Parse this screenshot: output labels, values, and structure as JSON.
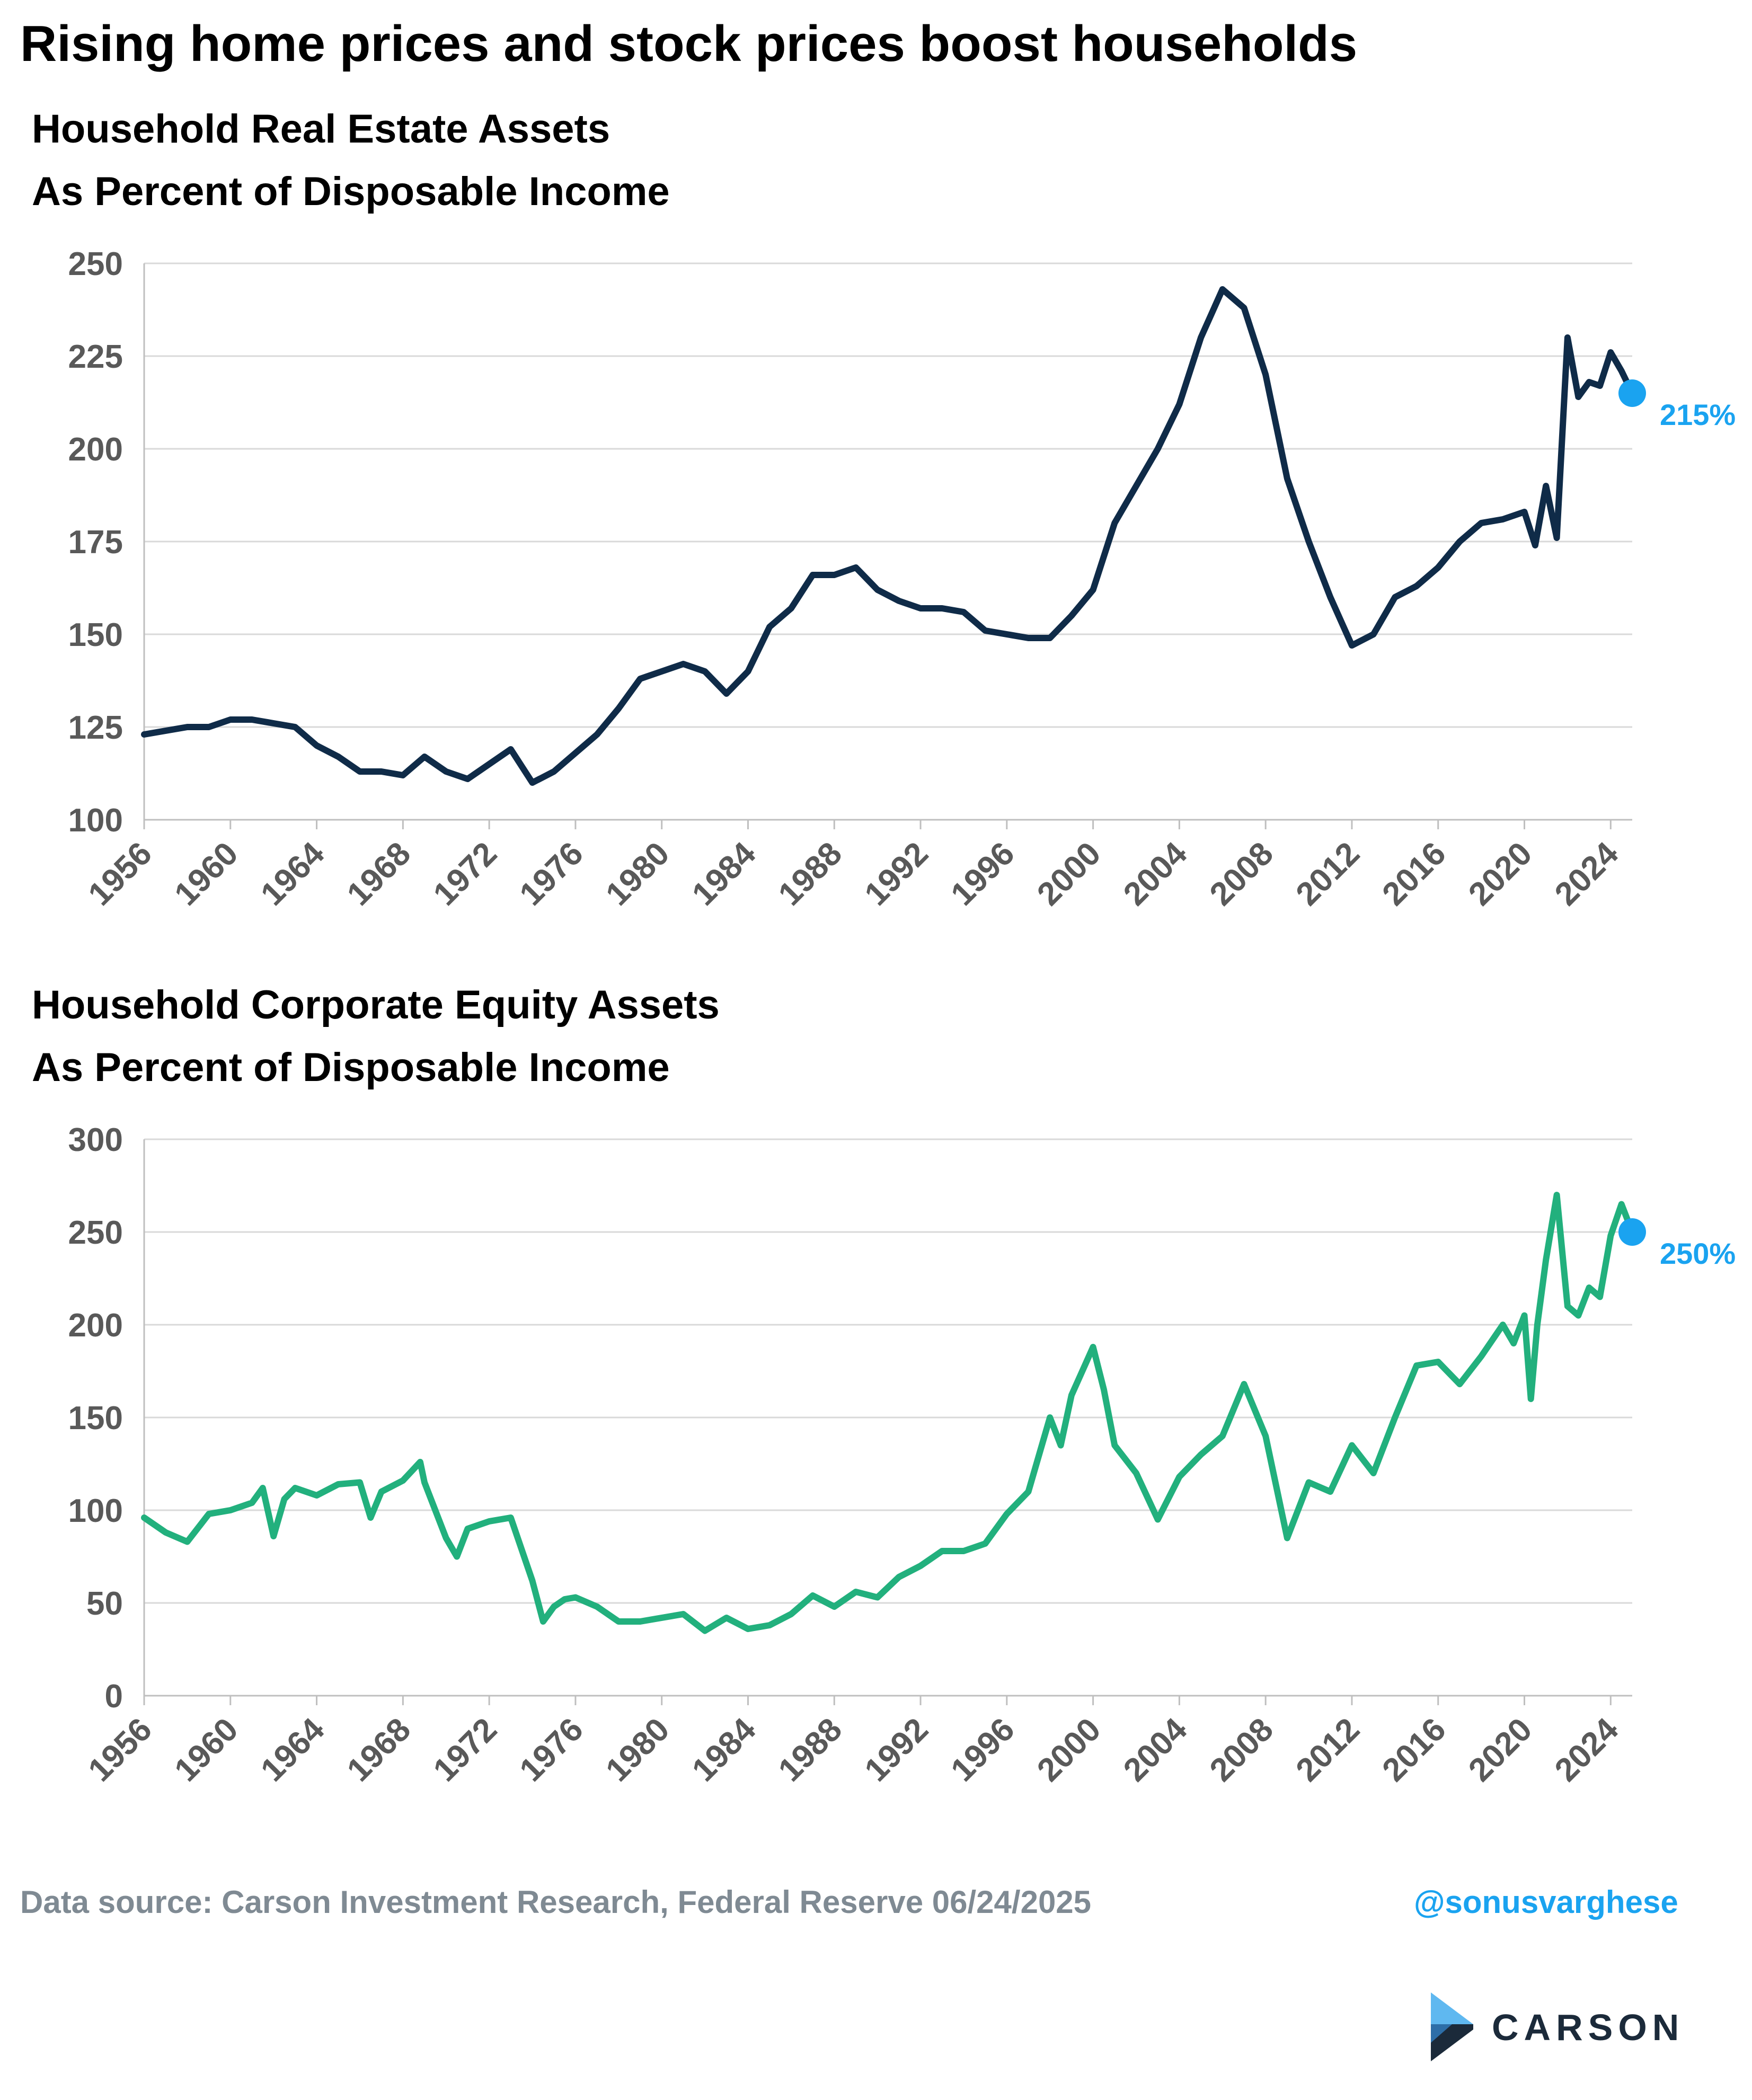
{
  "title": "Rising home prices and stock prices boost households",
  "footer": {
    "source": "Data source: Carson Investment Research, Federal Reserve  06/24/2025",
    "handle": "@sonusvarghese",
    "logo_text": "CARSON"
  },
  "colors": {
    "navy": "#0f2b48",
    "green": "#22b07d",
    "accent": "#1aa3f0",
    "grid": "#d9d9d9",
    "axis_text": "#595959"
  },
  "chart_data": [
    {
      "type": "line",
      "title": "Household Real Estate Assets",
      "subtitle": "As Percent of Disposable Income",
      "ylim": [
        100,
        250
      ],
      "yticks": [
        100,
        125,
        150,
        175,
        200,
        225,
        250
      ],
      "xlim": [
        1956,
        2025
      ],
      "xticks": [
        1956,
        1960,
        1964,
        1968,
        1972,
        1976,
        1980,
        1984,
        1988,
        1992,
        1996,
        2000,
        2004,
        2008,
        2012,
        2016,
        2020,
        2024
      ],
      "grid": true,
      "end_label": "215%",
      "series": [
        {
          "color": "#0f2b48",
          "x": [
            1956,
            1957,
            1958,
            1959,
            1960,
            1961,
            1962,
            1963,
            1964,
            1965,
            1966,
            1967,
            1968,
            1969,
            1970,
            1971,
            1972,
            1973,
            1974,
            1975,
            1976,
            1977,
            1978,
            1979,
            1980,
            1981,
            1982,
            1983,
            1984,
            1985,
            1986,
            1987,
            1988,
            1989,
            1990,
            1991,
            1992,
            1993,
            1994,
            1995,
            1996,
            1997,
            1998,
            1999,
            2000,
            2001,
            2002,
            2003,
            2004,
            2005,
            2006,
            2007,
            2008,
            2009,
            2010,
            2011,
            2012,
            2013,
            2014,
            2015,
            2016,
            2017,
            2018,
            2019,
            2020,
            2020.5,
            2021,
            2021.5,
            2022,
            2022.5,
            2023,
            2023.5,
            2024,
            2024.5,
            2025
          ],
          "y": [
            123,
            124,
            125,
            125,
            127,
            127,
            126,
            125,
            120,
            117,
            113,
            113,
            112,
            117,
            113,
            111,
            115,
            119,
            110,
            113,
            118,
            123,
            130,
            138,
            140,
            142,
            140,
            134,
            140,
            152,
            157,
            166,
            166,
            168,
            162,
            159,
            157,
            157,
            156,
            151,
            150,
            149,
            149,
            155,
            162,
            180,
            190,
            200,
            212,
            230,
            243,
            238,
            220,
            192,
            175,
            160,
            147,
            150,
            160,
            163,
            168,
            175,
            180,
            181,
            183,
            174,
            190,
            176,
            230,
            214,
            218,
            217,
            226,
            221,
            215
          ]
        }
      ]
    },
    {
      "type": "line",
      "title": "Household Corporate Equity Assets",
      "subtitle": "As Percent of Disposable Income",
      "ylim": [
        0,
        300
      ],
      "yticks": [
        0,
        50,
        100,
        150,
        200,
        250,
        300
      ],
      "xlim": [
        1956,
        2025
      ],
      "xticks": [
        1956,
        1960,
        1964,
        1968,
        1972,
        1976,
        1980,
        1984,
        1988,
        1992,
        1996,
        2000,
        2004,
        2008,
        2012,
        2016,
        2020,
        2024
      ],
      "grid": true,
      "end_label": "250%",
      "series": [
        {
          "color": "#22b07d",
          "x": [
            1956,
            1957,
            1958,
            1959,
            1960,
            1961,
            1961.5,
            1962,
            1962.5,
            1963,
            1964,
            1965,
            1966,
            1966.5,
            1967,
            1968,
            1968.8,
            1969,
            1970,
            1970.5,
            1971,
            1972,
            1973,
            1974,
            1974.5,
            1975,
            1975.5,
            1976,
            1977,
            1978,
            1979,
            1980,
            1981,
            1982,
            1983,
            1984,
            1985,
            1986,
            1987,
            1988,
            1989,
            1990,
            1991,
            1992,
            1993,
            1994,
            1995,
            1996,
            1997,
            1998,
            1998.5,
            1999,
            2000,
            2000.5,
            2001,
            2002,
            2003,
            2004,
            2005,
            2006,
            2007,
            2008,
            2009,
            2010,
            2011,
            2012,
            2013,
            2014,
            2015,
            2016,
            2017,
            2018,
            2019,
            2019.5,
            2020,
            2020.3,
            2020.6,
            2021,
            2021.5,
            2022,
            2022.5,
            2023,
            2023.5,
            2024,
            2024.5,
            2025
          ],
          "y": [
            96,
            88,
            83,
            98,
            100,
            104,
            112,
            86,
            106,
            112,
            108,
            114,
            115,
            96,
            110,
            116,
            126,
            115,
            85,
            75,
            90,
            94,
            96,
            62,
            40,
            48,
            52,
            53,
            48,
            40,
            40,
            42,
            44,
            35,
            42,
            36,
            38,
            44,
            54,
            48,
            56,
            53,
            64,
            70,
            78,
            78,
            82,
            98,
            110,
            150,
            135,
            162,
            188,
            165,
            135,
            120,
            95,
            118,
            130,
            140,
            168,
            140,
            85,
            115,
            110,
            135,
            120,
            150,
            178,
            180,
            168,
            183,
            200,
            190,
            205,
            160,
            200,
            235,
            270,
            210,
            205,
            220,
            215,
            248,
            265,
            250
          ]
        }
      ]
    }
  ]
}
